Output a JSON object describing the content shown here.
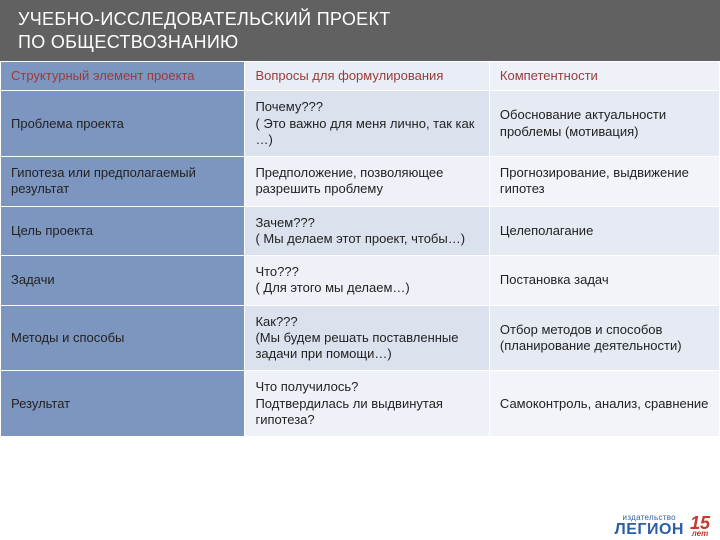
{
  "title": {
    "line1": "УЧЕБНО-ИССЛЕДОВАТЕЛЬСКИЙ   ПРОЕКТ",
    "line2": "ПО ОБЩЕСТВОЗНАНИЮ",
    "bg_color": "#616161",
    "text_color": "#ffffff",
    "fontsize": 18
  },
  "table": {
    "type": "table",
    "border_color": "#ffffff",
    "header_text_color": "#9a3b3b",
    "cell_text_color": "#222222",
    "cell_fontsize": 13,
    "columns": [
      {
        "label": "Структурный элемент проекта",
        "width_pct": 34,
        "bg": "#7d96bf"
      },
      {
        "label": "Вопросы для формулирования",
        "width_pct": 34,
        "bg": "#e9edf5"
      },
      {
        "label": "Компетентности",
        "width_pct": 32,
        "bg": "#eef1f7"
      }
    ],
    "col_backgrounds": {
      "col1": "#7d96bf",
      "col2_alt": [
        "#dbe2ee",
        "#eef1f7"
      ],
      "col3_alt": [
        "#e5eaf3",
        "#f2f4f9"
      ]
    },
    "rows": [
      {
        "c1": "Проблема проекта",
        "c2": "Почему???\n( Это важно для меня лично, так как …)",
        "c3": "Обоснование актуальности проблемы (мотивация)"
      },
      {
        "c1": "Гипотеза или предполагаемый результат",
        "c2": "Предположение, позволяющее разрешить проблему",
        "c3": "Прогнозирование, выдвижение гипотез"
      },
      {
        "c1": "Цель проекта",
        "c2": "Зачем???\n( Мы делаем этот проект, чтобы…)",
        "c3": "Целеполагание"
      },
      {
        "c1": "Задачи",
        "c2": "Что???\n( Для этого мы делаем…)",
        "c3": "Постановка задач"
      },
      {
        "c1": "Методы и способы",
        "c2": "Как???\n(Мы будем решать поставленные задачи при помощи…)",
        "c3": "Отбор методов и способов (планирование деятельности)"
      },
      {
        "c1": "Результат",
        "c2": "Что получилось?\nПодтвердилась ли  выдвинутая гипотеза?",
        "c3": "Самоконтроль, анализ, сравнение"
      }
    ]
  },
  "logo": {
    "publisher_small": "издательство",
    "publisher": "ЛЕГИОН",
    "years_number": "15",
    "years_label": "лет",
    "brand_color": "#2e5fa3",
    "accent_color": "#c23a2e"
  }
}
